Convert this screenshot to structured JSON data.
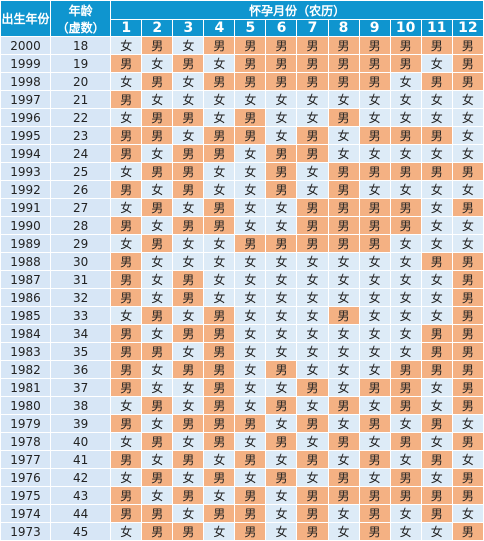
{
  "colors": {
    "header_bg": "#0f95cf",
    "boy_cell": "#f4b183",
    "girl_cell": "#ddebf7",
    "label_cell": "#d7e6f6"
  },
  "header": {
    "birth_year": "出生年份",
    "age_line1": "年龄",
    "age_line2": "（虚数）",
    "months_title": "怀孕月份（农历）",
    "months": [
      "1",
      "2",
      "3",
      "4",
      "5",
      "6",
      "7",
      "8",
      "9",
      "10",
      "11",
      "12"
    ]
  },
  "rows": [
    {
      "year": "2000",
      "age": "18",
      "cells": [
        "女",
        "男",
        "女",
        "男",
        "男",
        "男",
        "男",
        "男",
        "男",
        "男",
        "男",
        "男"
      ]
    },
    {
      "year": "1999",
      "age": "19",
      "cells": [
        "男",
        "女",
        "男",
        "女",
        "男",
        "男",
        "男",
        "男",
        "男",
        "男",
        "女",
        "男"
      ]
    },
    {
      "year": "1998",
      "age": "20",
      "cells": [
        "女",
        "男",
        "女",
        "男",
        "男",
        "男",
        "男",
        "男",
        "男",
        "女",
        "男",
        "男"
      ]
    },
    {
      "year": "1997",
      "age": "21",
      "cells": [
        "男",
        "女",
        "女",
        "女",
        "女",
        "女",
        "女",
        "女",
        "女",
        "女",
        "女",
        "女"
      ]
    },
    {
      "year": "1996",
      "age": "22",
      "cells": [
        "女",
        "男",
        "男",
        "女",
        "男",
        "女",
        "女",
        "男",
        "女",
        "女",
        "女",
        "女"
      ]
    },
    {
      "year": "1995",
      "age": "23",
      "cells": [
        "男",
        "男",
        "女",
        "男",
        "男",
        "女",
        "男",
        "女",
        "男",
        "男",
        "男",
        "女"
      ]
    },
    {
      "year": "1994",
      "age": "24",
      "cells": [
        "男",
        "女",
        "男",
        "男",
        "女",
        "男",
        "男",
        "女",
        "女",
        "女",
        "女",
        "女"
      ]
    },
    {
      "year": "1993",
      "age": "25",
      "cells": [
        "女",
        "男",
        "男",
        "女",
        "女",
        "男",
        "女",
        "男",
        "男",
        "男",
        "男",
        "男"
      ]
    },
    {
      "year": "1992",
      "age": "26",
      "cells": [
        "男",
        "女",
        "男",
        "女",
        "女",
        "男",
        "女",
        "男",
        "女",
        "女",
        "女",
        "女"
      ]
    },
    {
      "year": "1991",
      "age": "27",
      "cells": [
        "女",
        "男",
        "女",
        "男",
        "女",
        "女",
        "男",
        "男",
        "男",
        "男",
        "女",
        "男"
      ]
    },
    {
      "year": "1990",
      "age": "28",
      "cells": [
        "男",
        "女",
        "男",
        "男",
        "女",
        "女",
        "男",
        "男",
        "男",
        "男",
        "女",
        "女"
      ]
    },
    {
      "year": "1989",
      "age": "29",
      "cells": [
        "女",
        "男",
        "女",
        "女",
        "男",
        "男",
        "男",
        "男",
        "男",
        "女",
        "女",
        "女"
      ]
    },
    {
      "year": "1988",
      "age": "30",
      "cells": [
        "男",
        "女",
        "女",
        "女",
        "女",
        "女",
        "女",
        "女",
        "女",
        "女",
        "男",
        "男"
      ]
    },
    {
      "year": "1987",
      "age": "31",
      "cells": [
        "男",
        "女",
        "男",
        "女",
        "女",
        "女",
        "女",
        "女",
        "女",
        "女",
        "女",
        "男"
      ]
    },
    {
      "year": "1986",
      "age": "32",
      "cells": [
        "男",
        "女",
        "男",
        "女",
        "女",
        "女",
        "女",
        "女",
        "女",
        "女",
        "女",
        "男"
      ]
    },
    {
      "year": "1985",
      "age": "33",
      "cells": [
        "女",
        "男",
        "女",
        "男",
        "女",
        "女",
        "女",
        "男",
        "女",
        "女",
        "女",
        "男"
      ]
    },
    {
      "year": "1984",
      "age": "34",
      "cells": [
        "男",
        "女",
        "男",
        "男",
        "女",
        "女",
        "女",
        "女",
        "女",
        "女",
        "男",
        "男"
      ]
    },
    {
      "year": "1983",
      "age": "35",
      "cells": [
        "男",
        "男",
        "女",
        "男",
        "女",
        "女",
        "女",
        "女",
        "女",
        "女",
        "男",
        "男"
      ]
    },
    {
      "year": "1982",
      "age": "36",
      "cells": [
        "男",
        "女",
        "男",
        "男",
        "女",
        "男",
        "女",
        "女",
        "女",
        "男",
        "男",
        "男"
      ]
    },
    {
      "year": "1981",
      "age": "37",
      "cells": [
        "男",
        "女",
        "女",
        "男",
        "女",
        "女",
        "男",
        "女",
        "男",
        "男",
        "女",
        "男"
      ]
    },
    {
      "year": "1980",
      "age": "38",
      "cells": [
        "女",
        "男",
        "女",
        "男",
        "女",
        "男",
        "女",
        "男",
        "女",
        "男",
        "女",
        "男"
      ]
    },
    {
      "year": "1979",
      "age": "39",
      "cells": [
        "男",
        "女",
        "男",
        "男",
        "男",
        "女",
        "男",
        "女",
        "男",
        "女",
        "男",
        "女"
      ]
    },
    {
      "year": "1978",
      "age": "40",
      "cells": [
        "女",
        "男",
        "女",
        "男",
        "女",
        "男",
        "女",
        "男",
        "女",
        "男",
        "女",
        "男"
      ]
    },
    {
      "year": "1977",
      "age": "41",
      "cells": [
        "男",
        "女",
        "男",
        "女",
        "男",
        "女",
        "男",
        "女",
        "男",
        "女",
        "男",
        "女"
      ]
    },
    {
      "year": "1976",
      "age": "42",
      "cells": [
        "女",
        "男",
        "女",
        "男",
        "女",
        "男",
        "女",
        "男",
        "女",
        "男",
        "女",
        "男"
      ]
    },
    {
      "year": "1975",
      "age": "43",
      "cells": [
        "男",
        "女",
        "男",
        "女",
        "男",
        "女",
        "男",
        "男",
        "男",
        "男",
        "男",
        "男"
      ]
    },
    {
      "year": "1974",
      "age": "44",
      "cells": [
        "男",
        "男",
        "女",
        "男",
        "男",
        "女",
        "男",
        "女",
        "男",
        "女",
        "男",
        "女"
      ]
    },
    {
      "year": "1973",
      "age": "45",
      "cells": [
        "女",
        "男",
        "男",
        "女",
        "男",
        "女",
        "男",
        "女",
        "男",
        "女",
        "女",
        "男"
      ]
    }
  ]
}
